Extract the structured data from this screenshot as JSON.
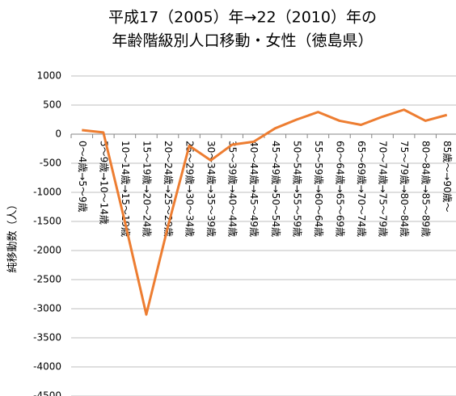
{
  "chart_data": {
    "type": "line",
    "title": [
      "平成17（2005）年→22（2010）年の",
      "年齢階級別人口移動・女性（徳島県）"
    ],
    "y_label": "純移動数（人）",
    "categories": [
      "0～4歳→5～9歳",
      "5～9歳→10～14歳",
      "10～14歳→15～19歳",
      "15～19歳→20～24歳",
      "20～24歳→25～29歳",
      "25～29歳→30～34歳",
      "30～34歳→35～39歳",
      "35～39歳→40～44歳",
      "40～44歳→45～49歳",
      "45～49歳→50～54歳",
      "50～54歳→55～59歳",
      "55～59歳→60～64歳",
      "60～64歳→65～69歳",
      "65～69歳→70～74歳",
      "70～74歳→75～79歳",
      "75～79歳→80～84歳",
      "80～84歳→85～89歳",
      "85歳～→90歳～"
    ],
    "values": [
      70,
      30,
      -1500,
      -3100,
      -1600,
      -200,
      -450,
      -180,
      -130,
      100,
      250,
      380,
      230,
      160,
      300,
      420,
      230,
      330
    ],
    "color": "#ed7d31",
    "ylim": [
      -4500,
      1000
    ],
    "yticks": [
      -4500,
      -4000,
      -3500,
      -3000,
      -2500,
      -2000,
      -1500,
      -1000,
      -500,
      0,
      500,
      1000
    ],
    "grid": true
  }
}
